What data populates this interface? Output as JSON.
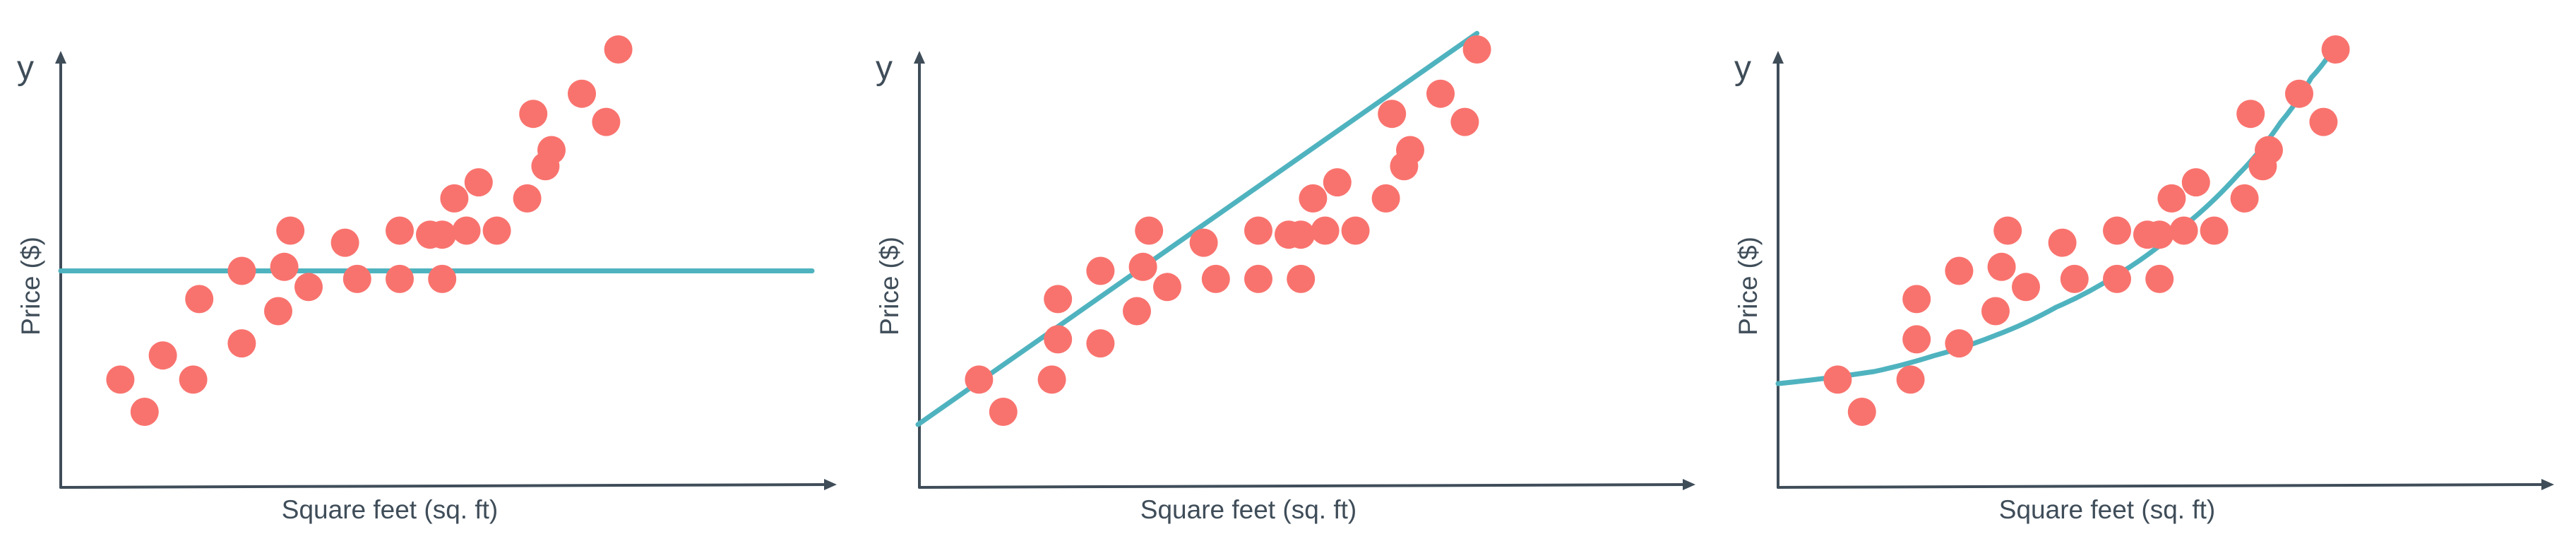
{
  "chart_data": [
    {
      "type": "scatter",
      "title": "",
      "xlabel": "Square feet (sq. ft)",
      "ylabel": "Price ($)",
      "y_axis_letter": "y",
      "xlim": [
        0,
        100
      ],
      "ylim": [
        0,
        100
      ],
      "fit": {
        "kind": "constant",
        "value": 45
      },
      "points": [
        [
          4,
          18
        ],
        [
          8,
          10
        ],
        [
          11,
          24
        ],
        [
          16,
          18
        ],
        [
          17,
          38
        ],
        [
          24,
          27
        ],
        [
          24,
          45
        ],
        [
          30,
          35
        ],
        [
          31,
          46
        ],
        [
          32,
          55
        ],
        [
          35,
          41
        ],
        [
          41,
          52
        ],
        [
          43,
          43
        ],
        [
          50,
          43
        ],
        [
          50,
          55
        ],
        [
          55,
          54
        ],
        [
          57,
          43
        ],
        [
          57,
          54
        ],
        [
          59,
          63
        ],
        [
          61,
          55
        ],
        [
          63,
          67
        ],
        [
          66,
          55
        ],
        [
          71,
          63
        ],
        [
          72,
          84
        ],
        [
          74,
          71
        ],
        [
          75,
          75
        ],
        [
          80,
          89
        ],
        [
          84,
          82
        ],
        [
          86,
          100
        ]
      ],
      "colors": {
        "points": "#f9736e",
        "fit": "#4fb3bf",
        "axes": "#3f4d59"
      }
    },
    {
      "type": "scatter",
      "title": "",
      "xlabel": "Square feet (sq. ft)",
      "ylabel": "Price ($)",
      "y_axis_letter": "y",
      "xlim": [
        0,
        100
      ],
      "ylim": [
        0,
        100
      ],
      "fit": {
        "kind": "linear",
        "from": [
          0,
          10
        ],
        "to": [
          86,
          104
        ]
      },
      "points": [
        [
          4,
          18
        ],
        [
          8,
          10
        ],
        [
          16,
          18
        ],
        [
          17,
          38
        ],
        [
          17,
          28
        ],
        [
          24,
          27
        ],
        [
          24,
          45
        ],
        [
          30,
          35
        ],
        [
          31,
          46
        ],
        [
          32,
          55
        ],
        [
          35,
          41
        ],
        [
          41,
          52
        ],
        [
          43,
          43
        ],
        [
          50,
          43
        ],
        [
          50,
          55
        ],
        [
          55,
          54
        ],
        [
          57,
          43
        ],
        [
          57,
          54
        ],
        [
          59,
          63
        ],
        [
          61,
          55
        ],
        [
          63,
          67
        ],
        [
          66,
          55
        ],
        [
          71,
          63
        ],
        [
          72,
          84
        ],
        [
          74,
          71
        ],
        [
          75,
          75
        ],
        [
          80,
          89
        ],
        [
          84,
          82
        ],
        [
          86,
          100
        ]
      ],
      "colors": {
        "points": "#f9736e",
        "fit": "#4fb3bf",
        "axes": "#3f4d59"
      }
    },
    {
      "type": "scatter",
      "title": "",
      "xlabel": "Square feet (sq. ft)",
      "ylabel": "Price ($)",
      "y_axis_letter": "y",
      "xlim": [
        0,
        100
      ],
      "ylim": [
        0,
        100
      ],
      "fit": {
        "kind": "curve",
        "shape": "exponential",
        "points": [
          [
            0,
            17
          ],
          [
            10,
            20
          ],
          [
            20,
            24
          ],
          [
            30,
            29
          ],
          [
            40,
            36
          ],
          [
            50,
            44
          ],
          [
            60,
            55
          ],
          [
            70,
            69
          ],
          [
            77,
            82
          ],
          [
            82,
            93
          ],
          [
            86,
            101
          ]
        ]
      },
      "points": [
        [
          4,
          18
        ],
        [
          8,
          10
        ],
        [
          16,
          18
        ],
        [
          17,
          38
        ],
        [
          17,
          28
        ],
        [
          24,
          27
        ],
        [
          24,
          45
        ],
        [
          30,
          35
        ],
        [
          31,
          46
        ],
        [
          32,
          55
        ],
        [
          35,
          41
        ],
        [
          41,
          52
        ],
        [
          43,
          43
        ],
        [
          50,
          43
        ],
        [
          50,
          55
        ],
        [
          55,
          54
        ],
        [
          57,
          43
        ],
        [
          57,
          54
        ],
        [
          59,
          63
        ],
        [
          61,
          55
        ],
        [
          63,
          67
        ],
        [
          66,
          55
        ],
        [
          71,
          63
        ],
        [
          72,
          84
        ],
        [
          74,
          71
        ],
        [
          75,
          75
        ],
        [
          80,
          89
        ],
        [
          84,
          82
        ],
        [
          86,
          100
        ]
      ],
      "colors": {
        "points": "#f9736e",
        "fit": "#4fb3bf",
        "axes": "#3f4d59"
      }
    }
  ]
}
